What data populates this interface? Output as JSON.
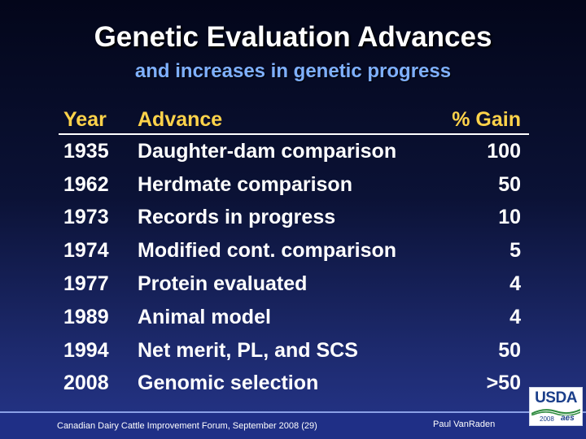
{
  "title": "Genetic Evaluation Advances",
  "subtitle": "and increases in genetic progress",
  "table": {
    "headers": {
      "year": "Year",
      "advance": "Advance",
      "gain": "% Gain"
    },
    "rows": [
      {
        "year": "1935",
        "advance": "Daughter-dam comparison",
        "gain": "100"
      },
      {
        "year": "1962",
        "advance": "Herdmate comparison",
        "gain": "50"
      },
      {
        "year": "1973",
        "advance": "Records in progress",
        "gain": "10"
      },
      {
        "year": "1974",
        "advance": "Modified cont. comparison",
        "gain": "5"
      },
      {
        "year": "1977",
        "advance": "Protein evaluated",
        "gain": "4"
      },
      {
        "year": "1989",
        "advance": "Animal model",
        "gain": "4"
      },
      {
        "year": "1994",
        "advance": "Net merit, PL, and SCS",
        "gain": "50"
      },
      {
        "year": "2008",
        "advance": "Genomic selection",
        "gain": ">50"
      }
    ]
  },
  "footer": {
    "event": "Canadian Dairy Cattle Improvement Forum, September 2008 (29)",
    "author": "Paul VanRaden"
  },
  "logo": {
    "usda": "USDA",
    "year": "2008",
    "aes": "aes"
  },
  "colors": {
    "header_text": "#ffd34a",
    "subtitle": "#7fb0ff",
    "footer_bar": "#1f2f86"
  }
}
